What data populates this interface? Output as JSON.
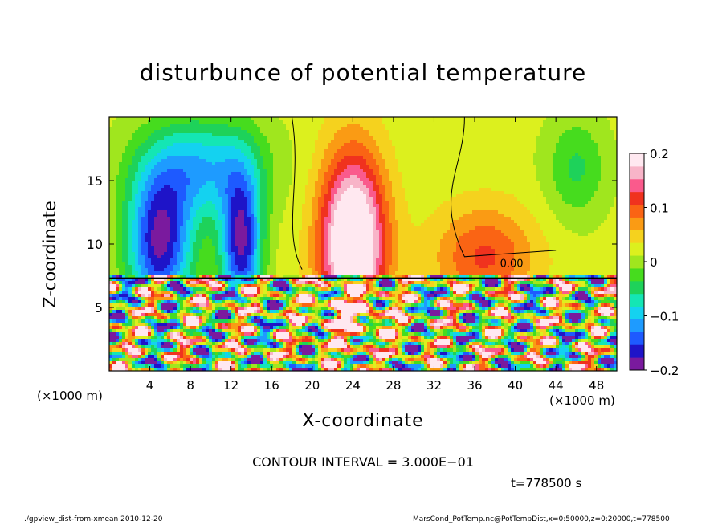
{
  "chart_data": {
    "type": "heatmap",
    "title": "disturbunce of potential temperature",
    "xlabel": "X-coordinate",
    "ylabel": "Z-coordinate",
    "x_unit_label": "(×1000 m)",
    "x_ticks": [
      4,
      8,
      12,
      16,
      20,
      24,
      28,
      32,
      36,
      40,
      44,
      48
    ],
    "y_ticks": [
      5,
      10,
      15
    ],
    "xlim": [
      0,
      50
    ],
    "ylim": [
      0,
      20
    ],
    "colorbar": {
      "ticks": [
        "0.2",
        "0.1",
        "0",
        "−0.1",
        "−0.2"
      ],
      "range": [
        -0.2,
        0.2
      ],
      "colors": [
        "#7a1a9e",
        "#1e14c8",
        "#1e5aff",
        "#1e9bff",
        "#14d2f0",
        "#14e6b4",
        "#1ed25a",
        "#46dc1e",
        "#a0e61e",
        "#dcf01e",
        "#f5d21e",
        "#fa9b14",
        "#fa6414",
        "#f0321e",
        "#fa5a8c",
        "#f8b4c8",
        "#ffe8f0"
      ]
    },
    "contour_label": "0.00",
    "contour_interval": "CONTOUR INTERVAL = 3.000E−01"
  },
  "annotations": {
    "time": "t=778500  s",
    "footer_left": "./gpview_dist-from-xmean  2010-12-20",
    "footer_right": "MarsCond_PotTemp.nc@PotTempDist,x=0:50000,z=0:20000,t=778500"
  }
}
